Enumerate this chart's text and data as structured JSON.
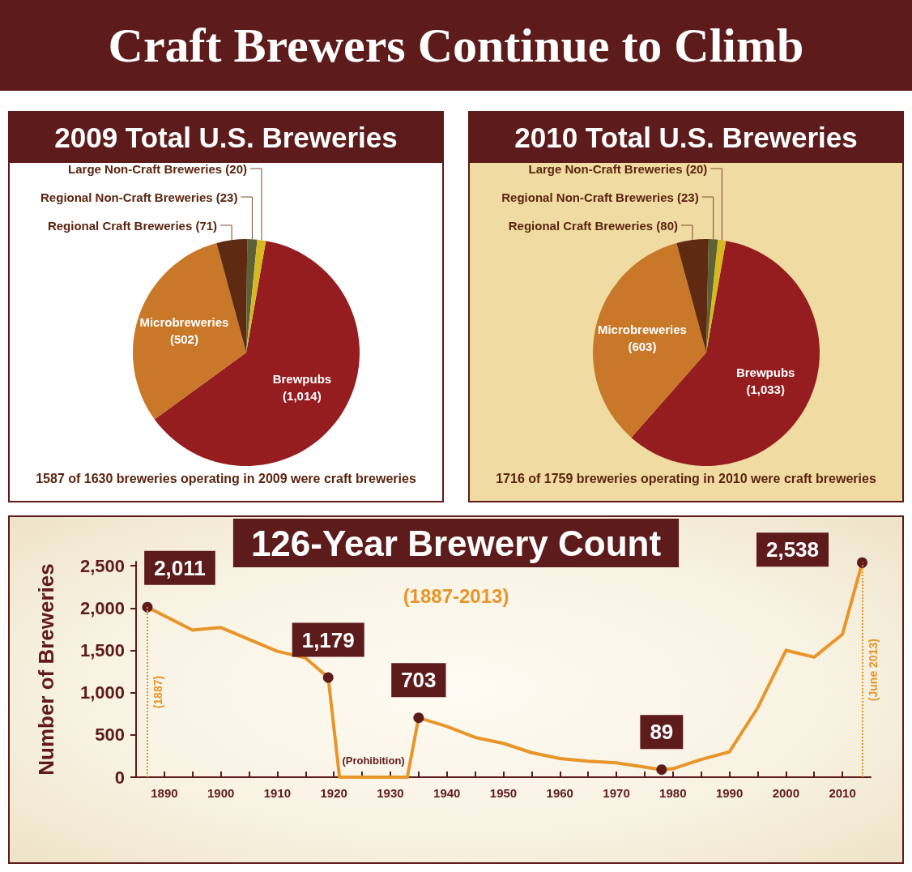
{
  "chart_data": [
    {
      "type": "other",
      "title": "Craft Brewers Continue to Climb"
    },
    {
      "type": "pie",
      "title": "2009 Total U.S. Breweries",
      "categories": [
        "Brewpubs",
        "Microbreweries",
        "Regional Craft Breweries",
        "Regional Non-Craft Breweries",
        "Large Non-Craft Breweries"
      ],
      "values": [
        1014,
        502,
        71,
        23,
        20
      ],
      "value_labels": [
        "(1,014)",
        "(502)",
        "(71)",
        "(23)",
        "(20)"
      ],
      "colors": [
        "#951c1f",
        "#c87828",
        "#5e2a12",
        "#5c6138",
        "#d6b81f"
      ],
      "annotations": [
        "1587 of 1630 breweries operating in 2009 were craft breweries"
      ]
    },
    {
      "type": "pie",
      "title": "2010 Total U.S. Breweries",
      "categories": [
        "Brewpubs",
        "Microbreweries",
        "Regional Craft Breweries",
        "Regional Non-Craft Breweries",
        "Large Non-Craft Breweries"
      ],
      "values": [
        1033,
        603,
        80,
        23,
        20
      ],
      "value_labels": [
        "(1,033)",
        "(603)",
        "(80)",
        "(23)",
        "(20)"
      ],
      "colors": [
        "#951c1f",
        "#c87828",
        "#5e2a12",
        "#5c6138",
        "#d6b81f"
      ],
      "annotations": [
        "1716 of 1759 breweries operating in 2010 were craft breweries"
      ]
    },
    {
      "type": "line",
      "title": "126-Year Brewery Count",
      "subtitle": "(1887-2013)",
      "ylabel": "Number of Breweries",
      "x": [
        1887,
        1895,
        1900,
        1910,
        1915,
        1919,
        1921,
        1933,
        1935,
        1940,
        1945,
        1950,
        1955,
        1960,
        1965,
        1970,
        1975,
        1978,
        1980,
        1985,
        1990,
        1995,
        2000,
        2005,
        2010,
        2013.5
      ],
      "series": [
        {
          "color": "#e8952a",
          "values": [
            2011,
            1740,
            1770,
            1490,
            1410,
            1179,
            0,
            0,
            703,
            600,
            470,
            400,
            290,
            220,
            190,
            170,
            120,
            89,
            100,
            210,
            300,
            820,
            1500,
            1420,
            1690,
            2538
          ],
          "value_labels": [
            "2,011",
            null,
            null,
            null,
            null,
            "1,179",
            null,
            null,
            "703",
            null,
            null,
            null,
            null,
            null,
            null,
            null,
            null,
            "89",
            null,
            null,
            null,
            null,
            null,
            null,
            null,
            "2,538"
          ]
        }
      ],
      "xlim": [
        1885,
        2015
      ],
      "xticks": [
        1890,
        {
          "value": 1895,
          "label": null
        },
        1900,
        {
          "value": 1905,
          "label": null
        },
        1910,
        {
          "value": 1915,
          "label": null
        },
        1920,
        {
          "value": 1925,
          "label": null
        },
        1930,
        {
          "value": 1935,
          "label": null
        },
        1940,
        {
          "value": 1945,
          "label": null
        },
        1950,
        {
          "value": 1955,
          "label": null
        },
        1960,
        {
          "value": 1965,
          "label": null
        },
        1970,
        {
          "value": 1975,
          "label": null
        },
        1980,
        {
          "value": 1985,
          "label": null
        },
        1990,
        {
          "value": 1995,
          "label": null
        },
        2000,
        {
          "value": 2005,
          "label": null
        },
        2010
      ],
      "ylim": [
        0,
        2550
      ],
      "yticks": [
        0,
        500,
        {
          "value": 1000,
          "label": "1,000"
        },
        {
          "value": 1500,
          "label": "1,500"
        },
        {
          "value": 2000,
          "label": "2,000"
        },
        {
          "value": 2500,
          "label": "2,500"
        }
      ],
      "marker": "none",
      "line_style": "solid",
      "ref_lines": [
        {
          "axis": "x",
          "value": 1887,
          "label": "(1887)",
          "color": "#e8952a",
          "line_style": "dotted"
        },
        {
          "axis": "x",
          "value": 2013.5,
          "label": "(June 2013)",
          "color": "#e8952a",
          "line_style": "dotted"
        }
      ],
      "annotations": [
        {
          "text": "(Prohibition)",
          "x": 1927,
          "y": 0
        }
      ]
    }
  ]
}
